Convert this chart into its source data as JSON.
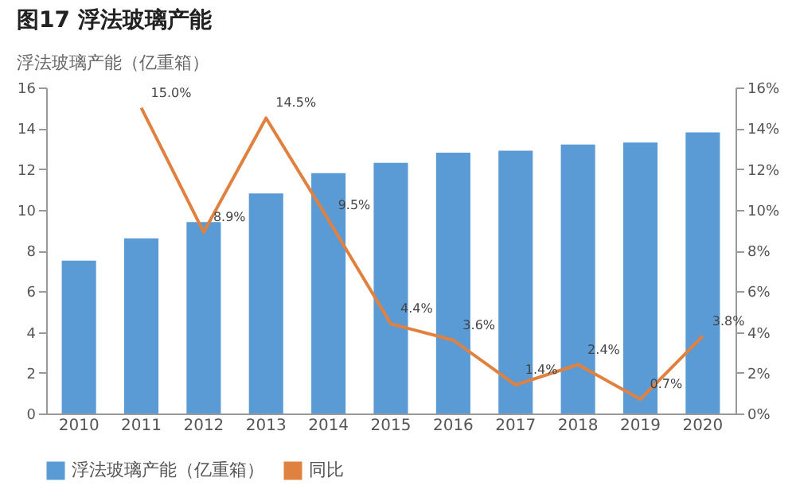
{
  "chart_data": {
    "type": "bar",
    "title": "图17 浮法玻璃产能",
    "subtitle": "浮法玻璃产能（亿重箱）",
    "categories": [
      "2010",
      "2011",
      "2012",
      "2013",
      "2014",
      "2015",
      "2016",
      "2017",
      "2018",
      "2019",
      "2020"
    ],
    "series": [
      {
        "name": "浮法玻璃产能（亿重箱）",
        "color": "#5b9bd5",
        "values": [
          7.5,
          8.6,
          9.4,
          10.8,
          11.8,
          12.3,
          12.8,
          12.9,
          13.2,
          13.3,
          13.8
        ]
      },
      {
        "name": "同比",
        "type": "line",
        "axis": "y2",
        "color": "#e0813f",
        "values": [
          null,
          15.0,
          8.9,
          14.5,
          9.5,
          4.4,
          3.6,
          1.4,
          2.4,
          0.7,
          3.8
        ],
        "value_labels": [
          null,
          "15.0%",
          "8.9%",
          "14.5%",
          "9.5%",
          "4.4%",
          "3.6%",
          "1.4%",
          "2.4%",
          "0.7%",
          "3.8%"
        ]
      }
    ],
    "ylim": [
      0,
      16
    ],
    "yticks": [
      0,
      2,
      4,
      6,
      8,
      10,
      12,
      14,
      16
    ],
    "y2lim": [
      0,
      16
    ],
    "y2ticks": [
      {
        "value": 0,
        "label": "0%"
      },
      {
        "value": 2,
        "label": "2%"
      },
      {
        "value": 4,
        "label": "4%"
      },
      {
        "value": 6,
        "label": "6%"
      },
      {
        "value": 8,
        "label": "8%"
      },
      {
        "value": 10,
        "label": "10%"
      },
      {
        "value": 12,
        "label": "12%"
      },
      {
        "value": 14,
        "label": "14%"
      },
      {
        "value": 16,
        "label": "16%"
      }
    ],
    "grid": false,
    "legend": "bottom"
  }
}
